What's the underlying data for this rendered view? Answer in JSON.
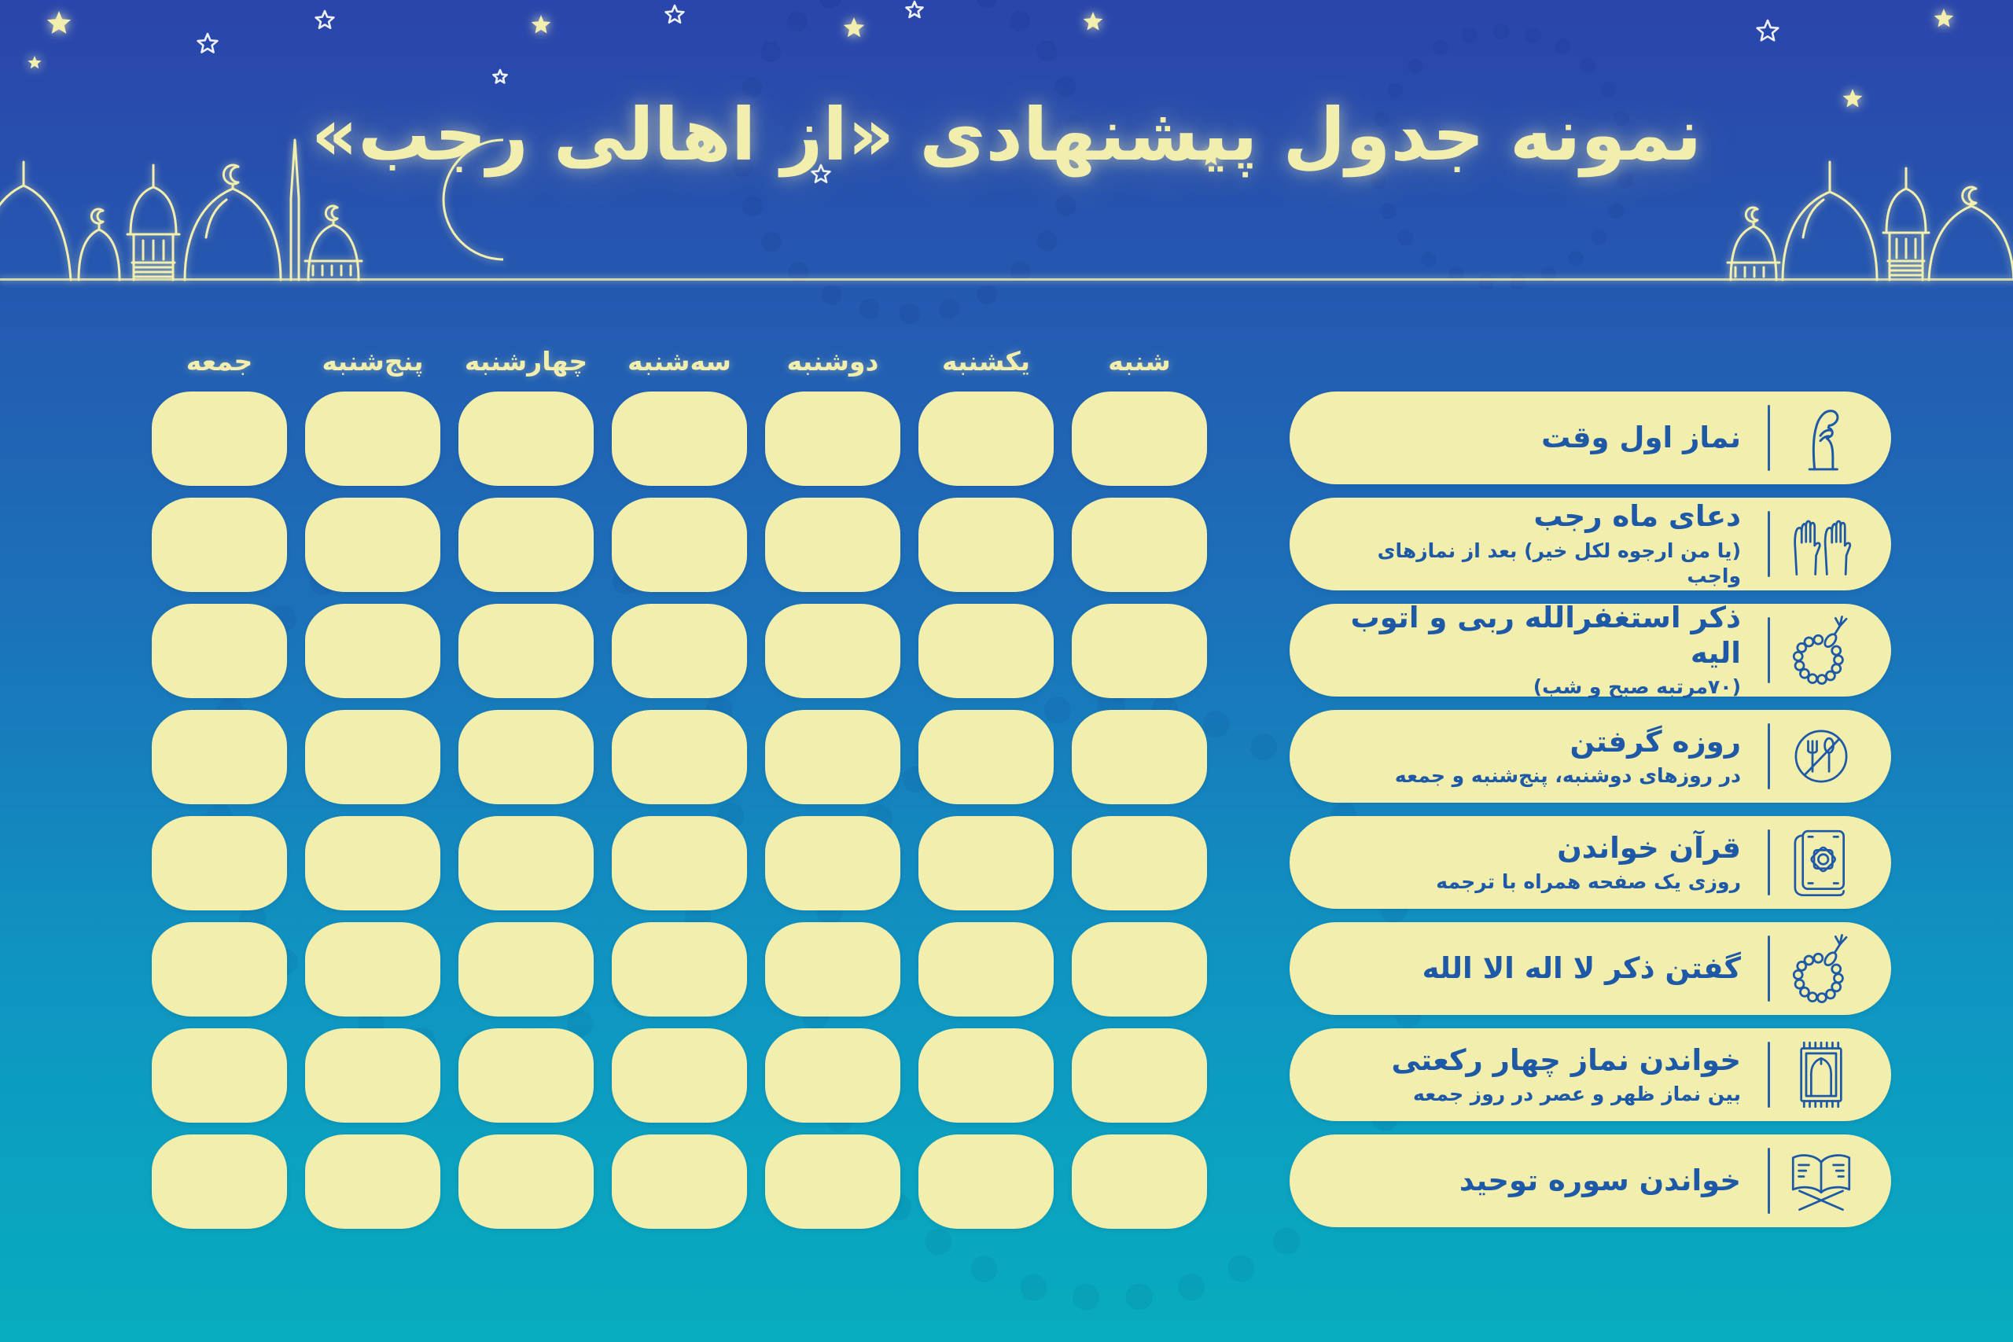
{
  "page": {
    "title": "نمونه جدول پیشنهادی «از اهالی رجب»"
  },
  "day_headers_left_to_right": [
    "جمعه",
    "پنج‌شنبه",
    "چهارشنبه",
    "سه‌شنبه",
    "دوشنبه",
    "یکشنبه",
    "شنبه"
  ],
  "tasks": [
    {
      "title": "نماز اول وقت",
      "subtitle": "",
      "icon": "praying-person-icon"
    },
    {
      "title": "دعای ماه رجب",
      "subtitle": "(یا من ارجوه لکل خیر) بعد از نمازهای واجب",
      "icon": "dua-hands-icon"
    },
    {
      "title": "ذکر استغفرالله ربی و اتوب الیه",
      "subtitle": "(۷۰مرتبه صبح و شب)",
      "icon": "tasbih-icon"
    },
    {
      "title": "روزه گرفتن",
      "subtitle": "در روزهای دوشنبه، پنج‌شنبه و جمعه",
      "icon": "no-eating-icon"
    },
    {
      "title": "قرآن خواندن",
      "subtitle": "روزی یک صفحه همراه با ترجمه",
      "icon": "quran-book-icon"
    },
    {
      "title": "گفتن ذکر لا اله الا الله",
      "subtitle": "",
      "icon": "tasbih-icon"
    },
    {
      "title": "خواندن نماز چهار رکعتی",
      "subtitle": "بین نماز ظهر و عصر در روز جمعه",
      "icon": "prayer-rug-icon"
    },
    {
      "title": "خواندن سوره توحید",
      "subtitle": "",
      "icon": "open-quran-icon"
    }
  ],
  "grid": {
    "rows": 8,
    "columns": 7,
    "cell_state": "empty"
  },
  "colors": {
    "background_top": "#2a45ab",
    "background_bottom": "#07adbe",
    "cream": "#f2eeae",
    "task_text_blue": "#1d59a6"
  }
}
